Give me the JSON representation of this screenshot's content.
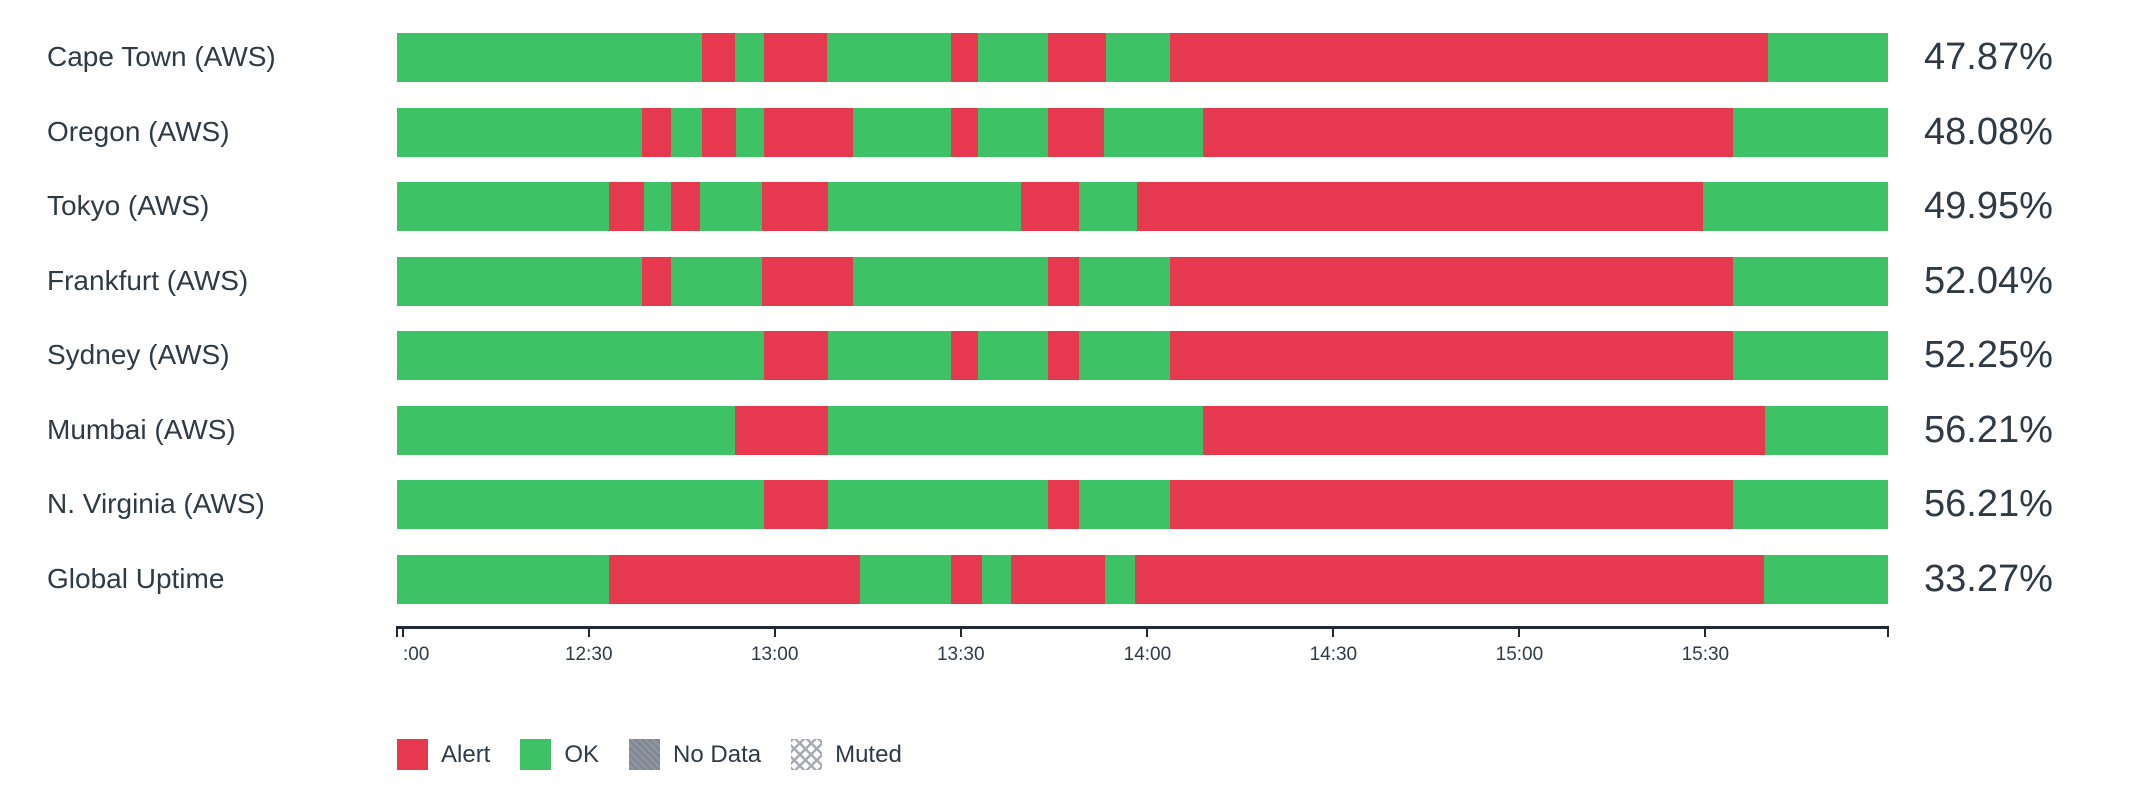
{
  "colors": {
    "text": "#2e3a46",
    "axis": "#1d2935",
    "background": "#ffffff"
  },
  "chart_data": {
    "type": "bar",
    "subtype": "horizontal-stacked-status-timeline",
    "title": "",
    "legend_position": "bottom-left",
    "grid": false,
    "status_colors": {
      "alert": "#e6394f",
      "ok": "#3ec266",
      "no_data": "#8d95a1"
    },
    "x_axis": {
      "range_start": "12:00",
      "range_end": "16:00",
      "tick_interval_minutes": 30,
      "ticks": [
        {
          "label": "",
          "pos_pct": 0
        },
        {
          "label": ":00",
          "pos_pct": 0.4,
          "clip_left": true
        },
        {
          "label": "12:30",
          "pos_pct": 12.86
        },
        {
          "label": "13:00",
          "pos_pct": 25.33
        },
        {
          "label": "13:30",
          "pos_pct": 37.81
        },
        {
          "label": "14:00",
          "pos_pct": 50.33
        },
        {
          "label": "14:30",
          "pos_pct": 62.8
        },
        {
          "label": "15:00",
          "pos_pct": 75.28
        },
        {
          "label": "15:30",
          "pos_pct": 87.75
        },
        {
          "label": "",
          "pos_pct": 100
        }
      ]
    },
    "legend": [
      {
        "id": "alert",
        "label": "Alert"
      },
      {
        "id": "ok",
        "label": "OK"
      },
      {
        "id": "no_data",
        "label": "No Data"
      },
      {
        "id": "muted",
        "label": "Muted"
      }
    ],
    "rows": [
      {
        "label": "Cape Town (AWS)",
        "uptime_label": "47.87%",
        "uptime_pct": 47.87,
        "segments": [
          {
            "status": "ok",
            "width_pct": 20.44
          },
          {
            "status": "alert",
            "width_pct": 2.2
          },
          {
            "status": "ok",
            "width_pct": 1.95
          },
          {
            "status": "alert",
            "width_pct": 4.28
          },
          {
            "status": "ok",
            "width_pct": 8.31
          },
          {
            "status": "alert",
            "width_pct": 1.82
          },
          {
            "status": "ok",
            "width_pct": 4.67
          },
          {
            "status": "alert",
            "width_pct": 3.9
          },
          {
            "status": "ok",
            "width_pct": 4.28
          },
          {
            "status": "alert",
            "width_pct": 40.13
          },
          {
            "status": "ok",
            "width_pct": 8.02
          }
        ]
      },
      {
        "label": "Oregon (AWS)",
        "uptime_label": "48.08%",
        "uptime_pct": 48.08,
        "segments": [
          {
            "status": "ok",
            "width_pct": 16.41
          },
          {
            "status": "alert",
            "width_pct": 1.95
          },
          {
            "status": "ok",
            "width_pct": 2.08
          },
          {
            "status": "alert",
            "width_pct": 2.33
          },
          {
            "status": "ok",
            "width_pct": 1.82
          },
          {
            "status": "alert",
            "width_pct": 5.97
          },
          {
            "status": "ok",
            "width_pct": 6.62
          },
          {
            "status": "alert",
            "width_pct": 1.82
          },
          {
            "status": "ok",
            "width_pct": 4.68
          },
          {
            "status": "alert",
            "width_pct": 3.77
          },
          {
            "status": "ok",
            "width_pct": 6.62
          },
          {
            "status": "alert",
            "width_pct": 35.57
          },
          {
            "status": "ok",
            "width_pct": 10.36
          }
        ]
      },
      {
        "label": "Tokyo (AWS)",
        "uptime_label": "49.95%",
        "uptime_pct": 49.95,
        "segments": [
          {
            "status": "ok",
            "width_pct": 14.2
          },
          {
            "status": "alert",
            "width_pct": 2.34
          },
          {
            "status": "ok",
            "width_pct": 1.82
          },
          {
            "status": "alert",
            "width_pct": 1.95
          },
          {
            "status": "ok",
            "width_pct": 4.15
          },
          {
            "status": "alert",
            "width_pct": 4.42
          },
          {
            "status": "ok",
            "width_pct": 12.98
          },
          {
            "status": "alert",
            "width_pct": 3.9
          },
          {
            "status": "ok",
            "width_pct": 3.89
          },
          {
            "status": "alert",
            "width_pct": 37.92
          },
          {
            "status": "ok",
            "width_pct": 12.43
          }
        ]
      },
      {
        "label": "Frankfurt (AWS)",
        "uptime_label": "52.04%",
        "uptime_pct": 52.04,
        "segments": [
          {
            "status": "ok",
            "width_pct": 16.41
          },
          {
            "status": "alert",
            "width_pct": 1.95
          },
          {
            "status": "ok",
            "width_pct": 6.1
          },
          {
            "status": "alert",
            "width_pct": 6.1
          },
          {
            "status": "ok",
            "width_pct": 13.12
          },
          {
            "status": "alert",
            "width_pct": 2.08
          },
          {
            "status": "ok",
            "width_pct": 6.1
          },
          {
            "status": "alert",
            "width_pct": 37.78
          },
          {
            "status": "ok",
            "width_pct": 10.36
          }
        ]
      },
      {
        "label": "Sydney (AWS)",
        "uptime_label": "52.25%",
        "uptime_pct": 52.25,
        "segments": [
          {
            "status": "ok",
            "width_pct": 24.59
          },
          {
            "status": "alert",
            "width_pct": 4.29
          },
          {
            "status": "ok",
            "width_pct": 8.3
          },
          {
            "status": "alert",
            "width_pct": 1.82
          },
          {
            "status": "ok",
            "width_pct": 4.68
          },
          {
            "status": "alert",
            "width_pct": 2.08
          },
          {
            "status": "ok",
            "width_pct": 6.1
          },
          {
            "status": "alert",
            "width_pct": 37.78
          },
          {
            "status": "ok",
            "width_pct": 10.36
          }
        ]
      },
      {
        "label": "Mumbai (AWS)",
        "uptime_label": "56.21%",
        "uptime_pct": 56.21,
        "segments": [
          {
            "status": "ok",
            "width_pct": 22.64
          },
          {
            "status": "alert",
            "width_pct": 6.24
          },
          {
            "status": "ok",
            "width_pct": 25.19
          },
          {
            "status": "alert",
            "width_pct": 37.65
          },
          {
            "status": "ok",
            "width_pct": 8.28
          }
        ]
      },
      {
        "label": "N. Virginia (AWS)",
        "uptime_label": "56.21%",
        "uptime_pct": 56.21,
        "segments": [
          {
            "status": "ok",
            "width_pct": 24.59
          },
          {
            "status": "alert",
            "width_pct": 4.29
          },
          {
            "status": "ok",
            "width_pct": 14.8
          },
          {
            "status": "alert",
            "width_pct": 2.08
          },
          {
            "status": "ok",
            "width_pct": 6.1
          },
          {
            "status": "alert",
            "width_pct": 37.78
          },
          {
            "status": "ok",
            "width_pct": 10.36
          }
        ]
      },
      {
        "label": "Global Uptime",
        "uptime_label": "33.27%",
        "uptime_pct": 33.27,
        "segments": [
          {
            "status": "ok",
            "width_pct": 14.2
          },
          {
            "status": "alert",
            "width_pct": 16.88
          },
          {
            "status": "ok",
            "width_pct": 6.1
          },
          {
            "status": "alert",
            "width_pct": 2.08
          },
          {
            "status": "ok",
            "width_pct": 1.9
          },
          {
            "status": "alert",
            "width_pct": 6.35
          },
          {
            "status": "ok",
            "width_pct": 1.97
          },
          {
            "status": "alert",
            "width_pct": 42.24
          },
          {
            "status": "ok",
            "width_pct": 8.28
          }
        ]
      }
    ]
  }
}
